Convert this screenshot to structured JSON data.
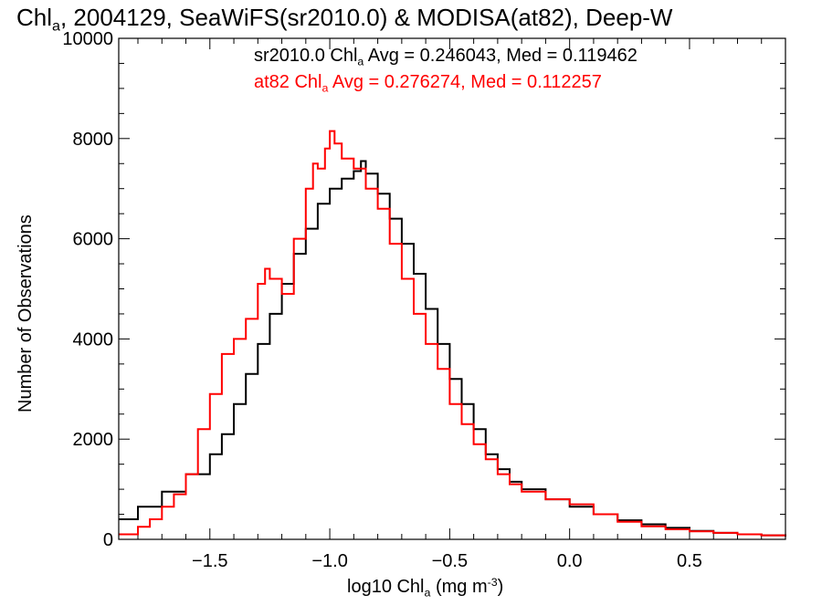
{
  "title": {
    "prefix": "Chl",
    "sub": "a",
    "rest": ", 2004129, SeaWiFS(sr2010.0) & MODISA(at82), Deep-W"
  },
  "legend": [
    {
      "pre": "sr2010.0 Chl",
      "sub": "a",
      "post": " Avg = 0.246043, Med = 0.119462",
      "color": "#000000"
    },
    {
      "pre": "at82 Chl",
      "sub": "a",
      "post": " Avg = 0.276274, Med = 0.112257",
      "color": "#ff0000"
    }
  ],
  "xaxis": {
    "label_pre": "log10 Chl",
    "label_sub": "a",
    "label_mid": " (mg m",
    "label_sup": "-3",
    "label_post": ")"
  },
  "yaxis": {
    "label": "Number of Observations"
  },
  "chart_data": {
    "type": "line",
    "xlim": [
      -1.88,
      0.9
    ],
    "ylim": [
      0,
      10000
    ],
    "xticks": [
      -1.5,
      -1.0,
      -0.5,
      0.0,
      0.5
    ],
    "xtick_labels": [
      "−1.5",
      "−1.0",
      "−0.5",
      "0.0",
      "0.5"
    ],
    "yticks": [
      0,
      2000,
      4000,
      6000,
      8000,
      10000
    ],
    "ytick_labels": [
      "0",
      "2000",
      "4000",
      "6000",
      "8000",
      "10000"
    ],
    "grid": false,
    "legend_position": "top-right",
    "series": [
      {
        "name": "sr2010.0",
        "color": "#000000",
        "x": [
          -1.88,
          -1.8,
          -1.7,
          -1.6,
          -1.5,
          -1.45,
          -1.4,
          -1.35,
          -1.3,
          -1.25,
          -1.2,
          -1.15,
          -1.1,
          -1.05,
          -1.0,
          -0.95,
          -0.9,
          -0.87,
          -0.85,
          -0.8,
          -0.75,
          -0.7,
          -0.65,
          -0.6,
          -0.55,
          -0.5,
          -0.45,
          -0.4,
          -0.35,
          -0.3,
          -0.25,
          -0.2,
          -0.1,
          0.0,
          0.1,
          0.2,
          0.3,
          0.4,
          0.5,
          0.6,
          0.7,
          0.8,
          0.9
        ],
        "y": [
          400,
          650,
          950,
          1300,
          1700,
          2100,
          2700,
          3300,
          3900,
          4500,
          5100,
          5700,
          6200,
          6700,
          7000,
          7200,
          7350,
          7550,
          7300,
          6900,
          6400,
          5900,
          5300,
          4600,
          3900,
          3200,
          2700,
          2200,
          1700,
          1400,
          1150,
          1000,
          800,
          650,
          500,
          380,
          300,
          230,
          170,
          130,
          100,
          80,
          60
        ]
      },
      {
        "name": "at82",
        "color": "#ff0000",
        "x": [
          -1.88,
          -1.8,
          -1.75,
          -1.7,
          -1.65,
          -1.6,
          -1.55,
          -1.5,
          -1.45,
          -1.4,
          -1.35,
          -1.3,
          -1.27,
          -1.25,
          -1.2,
          -1.15,
          -1.1,
          -1.07,
          -1.05,
          -1.02,
          -1.0,
          -0.98,
          -0.95,
          -0.9,
          -0.85,
          -0.8,
          -0.75,
          -0.7,
          -0.65,
          -0.6,
          -0.55,
          -0.5,
          -0.45,
          -0.4,
          -0.35,
          -0.3,
          -0.25,
          -0.2,
          -0.1,
          0.0,
          0.1,
          0.2,
          0.3,
          0.4,
          0.5,
          0.6,
          0.7,
          0.8,
          0.9
        ],
        "y": [
          100,
          250,
          400,
          650,
          900,
          1300,
          2200,
          2900,
          3700,
          4000,
          4400,
          5100,
          5400,
          5200,
          4900,
          6000,
          7000,
          7500,
          7400,
          7800,
          8150,
          7900,
          7600,
          7400,
          7000,
          6600,
          5900,
          5200,
          4500,
          3900,
          3400,
          2700,
          2300,
          1900,
          1600,
          1300,
          1100,
          950,
          800,
          700,
          500,
          350,
          260,
          200,
          160,
          130,
          100,
          80,
          60
        ]
      }
    ]
  }
}
